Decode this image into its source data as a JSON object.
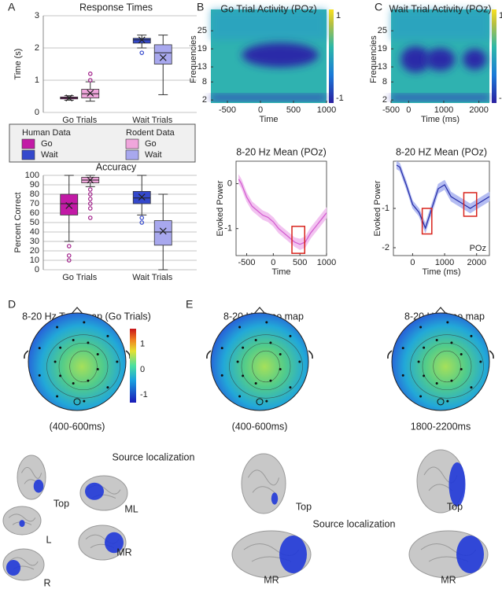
{
  "panels": [
    "A",
    "B",
    "C",
    "D",
    "E"
  ],
  "chart_data": [
    {
      "type": "box",
      "title": "Response Times",
      "ylabel": "Time (s)",
      "categories": [
        "Go Trials",
        "Wait Trials"
      ],
      "ylim": [
        0,
        3
      ],
      "yticks": [
        0,
        1,
        2,
        3
      ],
      "grid": true,
      "series": [
        {
          "name": "Go",
          "legend_group": "Human Data",
          "color": "#c21aa6",
          "boxes": [
            {
              "whiskers": [
                0.38,
                0.52
              ],
              "q1": 0.42,
              "median": 0.45,
              "q3": 0.48,
              "mean": 0.45,
              "outliers": []
            },
            null
          ]
        },
        {
          "name": "Wait",
          "legend_group": "Human Data",
          "color": "#3448cc",
          "boxes": [
            null,
            {
              "whiskers": [
                2.0,
                2.4
              ],
              "q1": 2.15,
              "median": 2.25,
              "q3": 2.3,
              "mean": 2.25,
              "outliers": [
                1.85
              ]
            }
          ]
        },
        {
          "name": "Go",
          "legend_group": "Rodent Data",
          "color": "#f0a6dc",
          "boxes": [
            {
              "whiskers": [
                0.35,
                0.95
              ],
              "q1": 0.45,
              "median": 0.58,
              "q3": 0.72,
              "mean": 0.6,
              "outliers": [
                1.0,
                1.2
              ]
            },
            null
          ]
        },
        {
          "name": "Wait",
          "legend_group": "Rodent Data",
          "color": "#a8a8ee",
          "boxes": [
            null,
            {
              "whiskers": [
                0.55,
                2.4
              ],
              "q1": 1.5,
              "median": 1.85,
              "q3": 2.1,
              "mean": 1.7,
              "outliers": []
            }
          ]
        }
      ]
    },
    {
      "type": "box",
      "title": "Accuracy",
      "ylabel": "Percent Correct",
      "categories": [
        "Go Trials",
        "Wait Trials"
      ],
      "ylim": [
        0,
        100
      ],
      "yticks": [
        0,
        10,
        20,
        30,
        40,
        50,
        60,
        70,
        80,
        90,
        100
      ],
      "grid": true,
      "series": [
        {
          "color": "#c21aa6",
          "boxes": [
            {
              "whiskers": [
                30,
                100
              ],
              "q1": 58,
              "median": 70,
              "q3": 80,
              "mean": 68,
              "outliers": [
                25,
                15,
                10
              ]
            },
            null
          ]
        },
        {
          "color": "#3448cc",
          "boxes": [
            null,
            {
              "whiskers": [
                58,
                100
              ],
              "q1": 70,
              "median": 76,
              "q3": 83,
              "mean": 77,
              "outliers": [
                55,
                50
              ]
            }
          ]
        },
        {
          "color": "#f0a6dc",
          "boxes": [
            {
              "whiskers": [
                88,
                100
              ],
              "q1": 92,
              "median": 95,
              "q3": 98,
              "mean": 95,
              "outliers": [
                85,
                80,
                75,
                70,
                65,
                55
              ]
            },
            null
          ]
        },
        {
          "color": "#a8a8ee",
          "boxes": [
            null,
            {
              "whiskers": [
                0,
                80
              ],
              "q1": 26,
              "median": 40,
              "q3": 52,
              "mean": 41,
              "outliers": []
            }
          ]
        }
      ]
    },
    {
      "type": "heatmap",
      "title": "Go Trial Activity (POz)",
      "xlabel": "Time",
      "ylabel": "Frequencies",
      "xlim": [
        -750,
        1000
      ],
      "xticks": [
        -500,
        0,
        500,
        1000
      ],
      "ylim": [
        1,
        30
      ],
      "yticks": [
        2,
        8,
        13,
        19,
        25
      ],
      "clim": [
        -1,
        1
      ],
      "colorbar_ticks": [
        1,
        -1
      ]
    },
    {
      "type": "heatmap",
      "title": "Wait Trial Activity (POz)",
      "xlabel": "Time (ms)",
      "ylabel": "Frequencies",
      "xlim": [
        -500,
        2300
      ],
      "xticks": [
        -500,
        0,
        1000,
        2000
      ],
      "ylim": [
        1,
        30
      ],
      "yticks": [
        2,
        8,
        13,
        19,
        25
      ],
      "clim": [
        -1,
        1
      ],
      "colorbar_ticks": [
        1,
        -1
      ]
    },
    {
      "type": "line",
      "title": "8-20 Hz Mean (POz)",
      "xlabel": "Time",
      "ylabel": "Evoked Power",
      "xlim": [
        -700,
        1000
      ],
      "xticks": [
        -500,
        0,
        500,
        1000
      ],
      "ylim": [
        -1.6,
        0.5
      ],
      "yticks": [
        -1,
        0
      ],
      "x": [
        -650,
        -600,
        -500,
        -400,
        -300,
        -200,
        -100,
        0,
        100,
        200,
        300,
        400,
        500,
        600,
        700,
        800,
        900,
        1000
      ],
      "series": [
        {
          "color": "#d35fd0",
          "band_color": "#f2c2f0",
          "values": [
            0.1,
            0.0,
            -0.3,
            -0.5,
            -0.6,
            -0.7,
            -0.75,
            -0.85,
            -1.0,
            -1.1,
            -1.2,
            -1.3,
            -1.35,
            -1.3,
            -1.1,
            -0.95,
            -0.8,
            -0.65
          ],
          "band": [
            0.1,
            0.1,
            0.1,
            0.1,
            0.1,
            0.1,
            0.1,
            0.1,
            0.1,
            0.1,
            0.1,
            0.1,
            0.12,
            0.12,
            0.12,
            0.12,
            0.12,
            0.12
          ]
        }
      ],
      "highlights": [
        {
          "x": [
            350,
            590
          ],
          "y": [
            -1.55,
            -0.95
          ]
        }
      ]
    },
    {
      "type": "line",
      "title": "8-20 HZ Mean (POz)",
      "xlabel": "Time (ms)",
      "ylabel": "Evoked Power",
      "annotation": "POz",
      "xlim": [
        -600,
        2400
      ],
      "xticks": [
        0,
        1000,
        2000
      ],
      "ylim": [
        -2.2,
        0.2
      ],
      "yticks": [
        -2,
        -1
      ],
      "x": [
        -500,
        -400,
        -200,
        0,
        200,
        400,
        600,
        800,
        1000,
        1200,
        1400,
        1600,
        1800,
        2000,
        2200,
        2400
      ],
      "series": [
        {
          "color": "#2830a8",
          "band_color": "#b4bcf2",
          "values": [
            0.1,
            0.05,
            -0.4,
            -0.9,
            -1.1,
            -1.5,
            -1.0,
            -0.5,
            -0.4,
            -0.7,
            -0.8,
            -0.9,
            -1.0,
            -0.9,
            -0.8,
            -0.7
          ],
          "band": [
            0.1,
            0.1,
            0.1,
            0.1,
            0.1,
            0.12,
            0.12,
            0.12,
            0.12,
            0.12,
            0.12,
            0.12,
            0.12,
            0.12,
            0.12,
            0.12
          ]
        }
      ],
      "highlights": [
        {
          "x": [
            300,
            600
          ],
          "y": [
            -1.65,
            -1.0
          ]
        },
        {
          "x": [
            1600,
            2000
          ],
          "y": [
            -1.2,
            -0.6
          ]
        }
      ]
    }
  ],
  "topomap_colorbar": {
    "clim": [
      -1.3,
      1.6
    ],
    "ticks": [
      1,
      0,
      -1
    ]
  },
  "topomaps": [
    {
      "title": "8-20 Hz Topo map (Go Trials)",
      "caption": "(400-600ms)"
    },
    {
      "title": "8-20 Hz Topo map",
      "caption": "(400-600ms)"
    },
    {
      "title": "8-20 Hz Topo map",
      "caption": "1800-2200ms"
    }
  ],
  "source_localization": [
    {
      "title": "Source localization",
      "labels": [
        "Top",
        "ML",
        "L",
        "MR",
        "R"
      ]
    },
    {
      "title": "Source localization",
      "labels": [
        "Top",
        "Top",
        "MR",
        "MR"
      ]
    }
  ]
}
